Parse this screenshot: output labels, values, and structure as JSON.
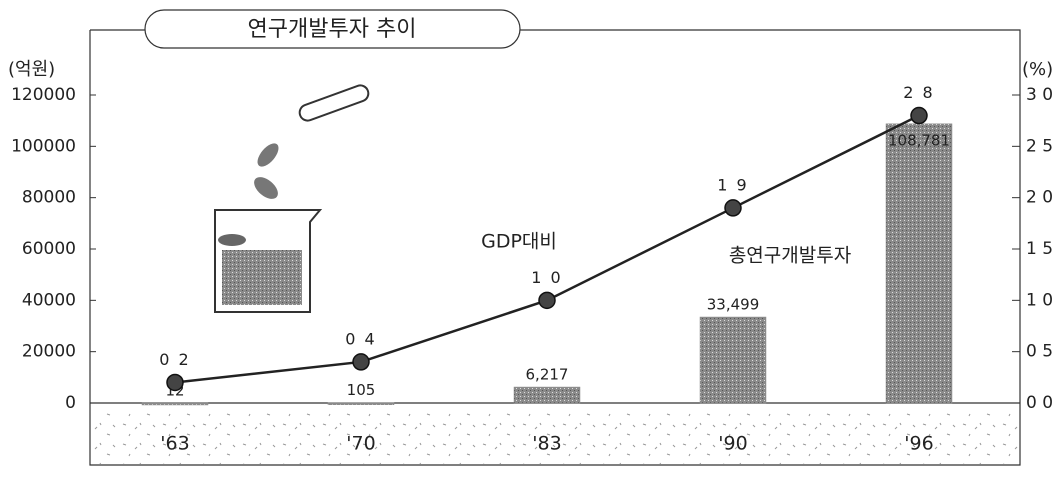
{
  "chart_data": {
    "type": "bar-line",
    "title": "연구개발투자 추이",
    "y_label": "(억원)",
    "y2_label": "(%)",
    "categories": [
      "'63",
      "'70",
      "'83",
      "'90",
      "'96"
    ],
    "series": [
      {
        "name": "총연구개발투자",
        "type": "bar",
        "color": "#8a8a8a",
        "values": [
          12,
          105,
          6217,
          33499,
          108781
        ],
        "value_labels": [
          "12",
          "105",
          "6,217",
          "33,499",
          "108,781"
        ]
      },
      {
        "name": "GDP대비",
        "type": "line",
        "axis": "y2",
        "color": "#222222",
        "values": [
          0.2,
          0.4,
          1.0,
          1.9,
          2.8
        ],
        "value_labels": [
          "0 2",
          "0 4",
          "1 0",
          "1 9",
          "2 8"
        ]
      }
    ],
    "ylim": [
      0,
      120000
    ],
    "yticks": [
      0,
      20000,
      40000,
      60000,
      80000,
      100000,
      120000
    ],
    "y2lim": [
      0,
      3.0
    ],
    "y2ticks": [
      {
        "value": 0,
        "label": "0 0"
      },
      {
        "value": 0.5,
        "label": "0 5"
      },
      {
        "value": 1.0,
        "label": "1 0"
      },
      {
        "value": 1.5,
        "label": "1 5"
      },
      {
        "value": 2.0,
        "label": "2 0"
      },
      {
        "value": 2.5,
        "label": "2 5"
      },
      {
        "value": 3.0,
        "label": "3 0"
      }
    ]
  }
}
